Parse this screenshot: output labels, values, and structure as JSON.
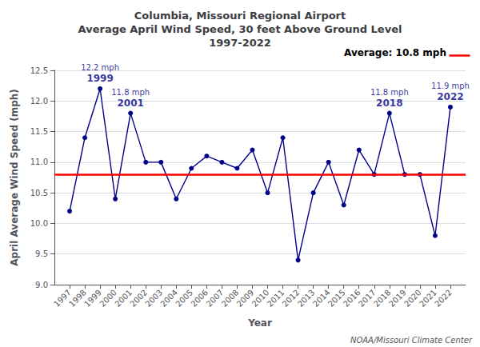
{
  "chart_data": {
    "type": "line",
    "title": "Columbia, Missouri Regional Airport\nAverage April Wind Speed, 30 feet Above Ground Level\n1997-2022",
    "x_label": "Year",
    "y_label": "April Average Wind Speed (mph)",
    "x": [
      1997,
      1998,
      1999,
      2000,
      2001,
      2002,
      2003,
      2004,
      2005,
      2006,
      2007,
      2008,
      2009,
      2010,
      2011,
      2012,
      2013,
      2014,
      2015,
      2016,
      2017,
      2018,
      2019,
      2020,
      2021,
      2022
    ],
    "values": [
      10.2,
      11.4,
      12.2,
      10.4,
      11.8,
      11.0,
      11.0,
      10.4,
      10.9,
      11.1,
      11.0,
      10.9,
      11.2,
      10.5,
      11.4,
      9.4,
      10.5,
      11.0,
      10.3,
      11.2,
      10.8,
      11.8,
      10.8,
      10.8,
      9.8,
      11.9
    ],
    "color": "#00008B",
    "marker": "circle",
    "xlim": [
      1996,
      2023
    ],
    "xticks": [
      1997,
      1998,
      1999,
      2000,
      2001,
      2002,
      2003,
      2004,
      2005,
      2006,
      2007,
      2008,
      2009,
      2010,
      2011,
      2012,
      2013,
      2014,
      2015,
      2016,
      2017,
      2018,
      2019,
      2020,
      2021,
      2022
    ],
    "ylim": [
      9.0,
      12.5
    ],
    "yticks": [
      {
        "value": 9.0,
        "label": "9.0"
      },
      {
        "value": 9.5,
        "label": "9.5"
      },
      {
        "value": 10.0,
        "label": "10.0"
      },
      {
        "value": 10.5,
        "label": "10.5"
      },
      {
        "value": 11.0,
        "label": "11.0"
      },
      {
        "value": 11.5,
        "label": "11.5"
      },
      {
        "value": 12.0,
        "label": "12.0"
      },
      {
        "value": 12.5,
        "label": "12.5"
      }
    ],
    "grid": "y",
    "average": {
      "value": 10.8,
      "label": "Average: 10.8 mph",
      "color": "#FF0000"
    },
    "annotations": [
      {
        "x": 1999,
        "y": 12.2,
        "label": "12.2 mph",
        "sublabel": "1999"
      },
      {
        "x": 2001,
        "y": 11.8,
        "label": "11.8 mph",
        "sublabel": "2001"
      },
      {
        "x": 2018,
        "y": 11.8,
        "label": "11.8 mph",
        "sublabel": "2018"
      },
      {
        "x": 2022,
        "y": 11.9,
        "label": "11.9 mph",
        "sublabel": "2022"
      }
    ],
    "source": "NOAA/Missouri Climate Center"
  }
}
